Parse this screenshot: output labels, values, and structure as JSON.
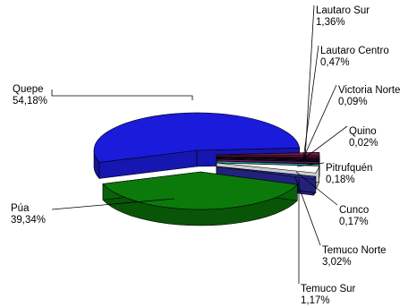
{
  "chart_data": {
    "type": "pie",
    "style": "3d-exploded",
    "legend": "none",
    "slices": [
      {
        "label": "Quepe",
        "value_text": "54,18%",
        "value": 54.18,
        "color": "#1b1bdc"
      },
      {
        "label": "Púa",
        "value_text": "39,34%",
        "value": 39.34,
        "color": "#0b7a0b"
      },
      {
        "label": "Temuco Sur",
        "value_text": "1,17%",
        "value": 1.17,
        "color": "#2a2a9c"
      },
      {
        "label": "Temuco Norte",
        "value_text": "3,02%",
        "value": 3.02,
        "color": "#ffffff"
      },
      {
        "label": "Cunco",
        "value_text": "0,17%",
        "value": 0.17,
        "color": "#2cd0cf"
      },
      {
        "label": "Pitrufquén",
        "value_text": "0,18%",
        "value": 0.18,
        "color": "#8a1a8a"
      },
      {
        "label": "Quino",
        "value_text": "0,02%",
        "value": 0.02,
        "color": "#2a3a7a"
      },
      {
        "label": "Victoria Norte",
        "value_text": "0,09%",
        "value": 0.09,
        "color": "#8a1a2a"
      },
      {
        "label": "Lautaro Centro",
        "value_text": "0,47%",
        "value": 0.47,
        "color": "#4a1a6a"
      },
      {
        "label": "Lautaro Sur",
        "value_text": "1,36%",
        "value": 1.36,
        "color": "#7a1a4a"
      }
    ]
  }
}
